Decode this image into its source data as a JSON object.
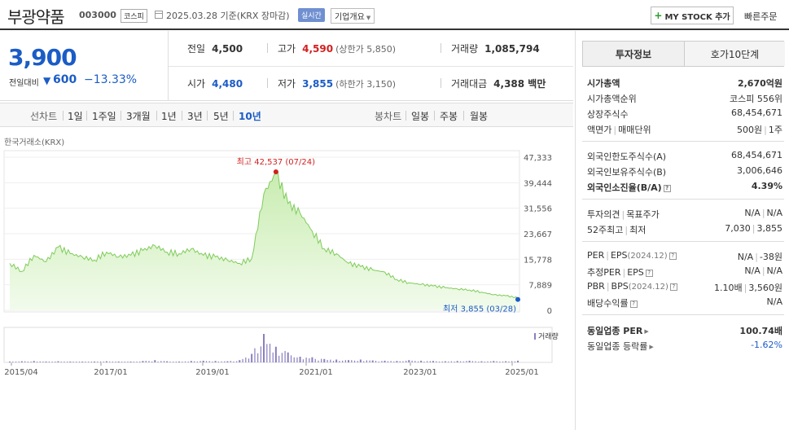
{
  "header": {
    "stock_name": "부광약품",
    "stock_code": "003000",
    "market": "코스피",
    "date_text": "2025.03.28  기준(KRX 장마감)",
    "realtime": "실시간",
    "overview": "기업개요",
    "mystock": "MY STOCK 추가",
    "quick_order": "빠른주문"
  },
  "price": {
    "current": "3,900",
    "change_label": "전일대비",
    "change": "600",
    "change_pct": "−13.33%",
    "prev_close_label": "전일",
    "prev_close": "4,500",
    "high_label": "고가",
    "high": "4,590",
    "upper_limit": "(상한가 5,850)",
    "volume_label": "거래량",
    "volume": "1,085,794",
    "open_label": "시가",
    "open": "4,480",
    "low_label": "저가",
    "low": "3,855",
    "lower_limit": "(하한가 3,150)",
    "amount_label": "거래대금",
    "amount": "4,388 백만"
  },
  "tabs": {
    "line_label": "선차트",
    "periods": [
      "1일",
      "1주일",
      "3개월",
      "1년",
      "3년",
      "5년",
      "10년"
    ],
    "selected": "10년",
    "candle_label": "봉차트",
    "candle": [
      "일봉",
      "주봉",
      "월봉"
    ]
  },
  "source": "한국거래소(KRX)",
  "chart_data": {
    "type": "area",
    "y_ticks": [
      "47,333",
      "39,444",
      "31,556",
      "23,667",
      "15,778",
      "7,889",
      "0"
    ],
    "x_ticks": [
      "2015/04",
      "2017/01",
      "2019/01",
      "2021/01",
      "2023/01",
      "2025/01"
    ],
    "ylim": [
      0,
      47333
    ],
    "high_annotation": "최고 42,537 (07/24)",
    "low_annotation": "최저 3,855 (03/28)",
    "volume_label": "거래량",
    "x": [
      "2015/04",
      "2015/07",
      "2015/10",
      "2016/01",
      "2016/04",
      "2016/07",
      "2016/10",
      "2017/01",
      "2017/04",
      "2017/07",
      "2017/10",
      "2018/01",
      "2018/04",
      "2018/07",
      "2018/10",
      "2019/01",
      "2019/04",
      "2019/07",
      "2019/10",
      "2020/01",
      "2020/04",
      "2020/05",
      "2020/07",
      "2020/09",
      "2020/11",
      "2021/01",
      "2021/04",
      "2021/07",
      "2021/10",
      "2022/01",
      "2022/04",
      "2022/07",
      "2022/10",
      "2023/01",
      "2023/04",
      "2023/07",
      "2023/10",
      "2024/01",
      "2024/04",
      "2024/07",
      "2024/10",
      "2025/01",
      "2025/03"
    ],
    "values": [
      14500,
      12000,
      17000,
      15000,
      19500,
      17500,
      16500,
      15500,
      18000,
      16500,
      17000,
      18500,
      20000,
      18000,
      17500,
      19000,
      17000,
      16500,
      15500,
      14500,
      16000,
      36000,
      42537,
      33000,
      30000,
      24500,
      19000,
      17500,
      14500,
      13500,
      12500,
      11800,
      9500,
      8500,
      8000,
      7500,
      7000,
      6600,
      6300,
      5600,
      4800,
      4500,
      3855
    ],
    "volume_rel": [
      0.02,
      0.04,
      0.05,
      0.03,
      0.04,
      0.03,
      0.02,
      0.03,
      0.04,
      0.03,
      0.02,
      0.05,
      0.08,
      0.04,
      0.03,
      0.05,
      0.06,
      0.05,
      0.04,
      0.08,
      0.3,
      1.0,
      0.55,
      0.35,
      0.2,
      0.18,
      0.12,
      0.1,
      0.08,
      0.1,
      0.07,
      0.06,
      0.05,
      0.08,
      0.06,
      0.05,
      0.04,
      0.05,
      0.06,
      0.04,
      0.05,
      0.04,
      0.06
    ]
  },
  "invest": {
    "tab_active": "투자정보",
    "tab_other": "호가10단계",
    "market_cap_label": "시가총액",
    "market_cap": "2,670억원",
    "rank_label": "시가총액순위",
    "rank": "코스피 556위",
    "shares_label": "상장주식수",
    "shares": "68,454,671",
    "face_label": "액면가",
    "unit_label": "매매단위",
    "face": "500원",
    "unit": "1주",
    "foreign_limit_label": "외국인한도주식수(A)",
    "foreign_limit": "68,454,671",
    "foreign_hold_label": "외국인보유주식수(B)",
    "foreign_hold": "3,006,646",
    "foreign_ratio_label": "외국인소진율(B/A)",
    "foreign_ratio": "4.39%",
    "opinion_label": "투자의견",
    "target_label": "목표주가",
    "opinion": "N/A",
    "target": "N/A",
    "w52_high_label": "52주최고",
    "w52_low_label": "최저",
    "w52_high": "7,030",
    "w52_low": "3,855",
    "per_label": "PER",
    "eps_label": "EPS",
    "eps_period": "(2024.12)",
    "per": "N/A",
    "eps": "-38원",
    "est_per_label": "추정PER",
    "est_eps_label": "EPS",
    "est_per": "N/A",
    "est_eps": "N/A",
    "pbr_label": "PBR",
    "bps_label": "BPS",
    "bps_period": "(2024.12)",
    "pbr": "1.10배",
    "bps": "3,560원",
    "dividend_label": "배당수익률",
    "dividend": "N/A",
    "sector_per_label": "동일업종 PER",
    "sector_per": "100.74배",
    "sector_chg_label": "동일업종 등락률",
    "sector_chg": "-1.62%"
  }
}
